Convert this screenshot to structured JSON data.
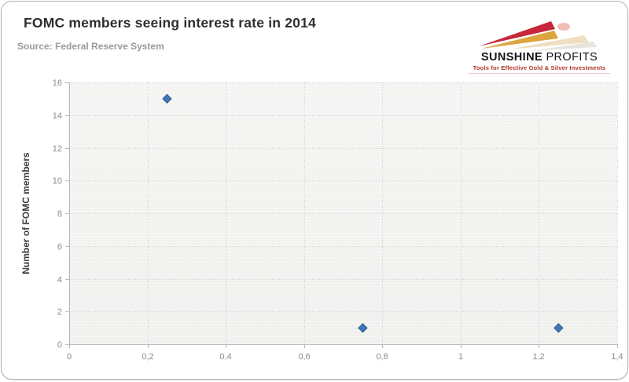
{
  "header": {
    "title": "FOMC members seeing interest rate in 2014",
    "source": "Source: Federal Reserve System"
  },
  "logo": {
    "name_primary": "SUNSHINE",
    "name_secondary": "PROFITS",
    "tagline": "Tools for Effective Gold & Silver Investments",
    "tagline_color": "#b03228",
    "arrow_red": "#c5273b",
    "arrow_gold": "#dda53f"
  },
  "chart_data": {
    "type": "scatter",
    "title": "FOMC members seeing interest rate in 2014",
    "xlabel": "",
    "ylabel": "Number of FOMC members",
    "xlim": [
      0,
      1.4
    ],
    "ylim": [
      0,
      16
    ],
    "x_tick_values": [
      0,
      0.2,
      0.4,
      0.6,
      0.8,
      1,
      1.2,
      1.4
    ],
    "x_tick_labels": [
      "0",
      "0,2",
      "0,4",
      "0,6",
      "0,8",
      "1",
      "1,2",
      "1,4"
    ],
    "y_tick_values": [
      0,
      2,
      4,
      6,
      8,
      10,
      12,
      14,
      16
    ],
    "y_tick_labels": [
      "0",
      "2",
      "4",
      "6",
      "8",
      "10",
      "12",
      "14",
      "16"
    ],
    "grid": true,
    "legend": "none",
    "marker": "diamond",
    "points": [
      {
        "x": 0.25,
        "y": 15
      },
      {
        "x": 0.75,
        "y": 1
      },
      {
        "x": 1.25,
        "y": 1
      }
    ]
  },
  "colors": {
    "marker_fill": "#4276b4",
    "marker_stroke": "#2f5a94",
    "grid_line": "#cccccc",
    "axis_line": "#b5b5b5",
    "tick_label": "#8c8c8c",
    "title": "#2e2e2e",
    "source": "#9a9a9a"
  }
}
